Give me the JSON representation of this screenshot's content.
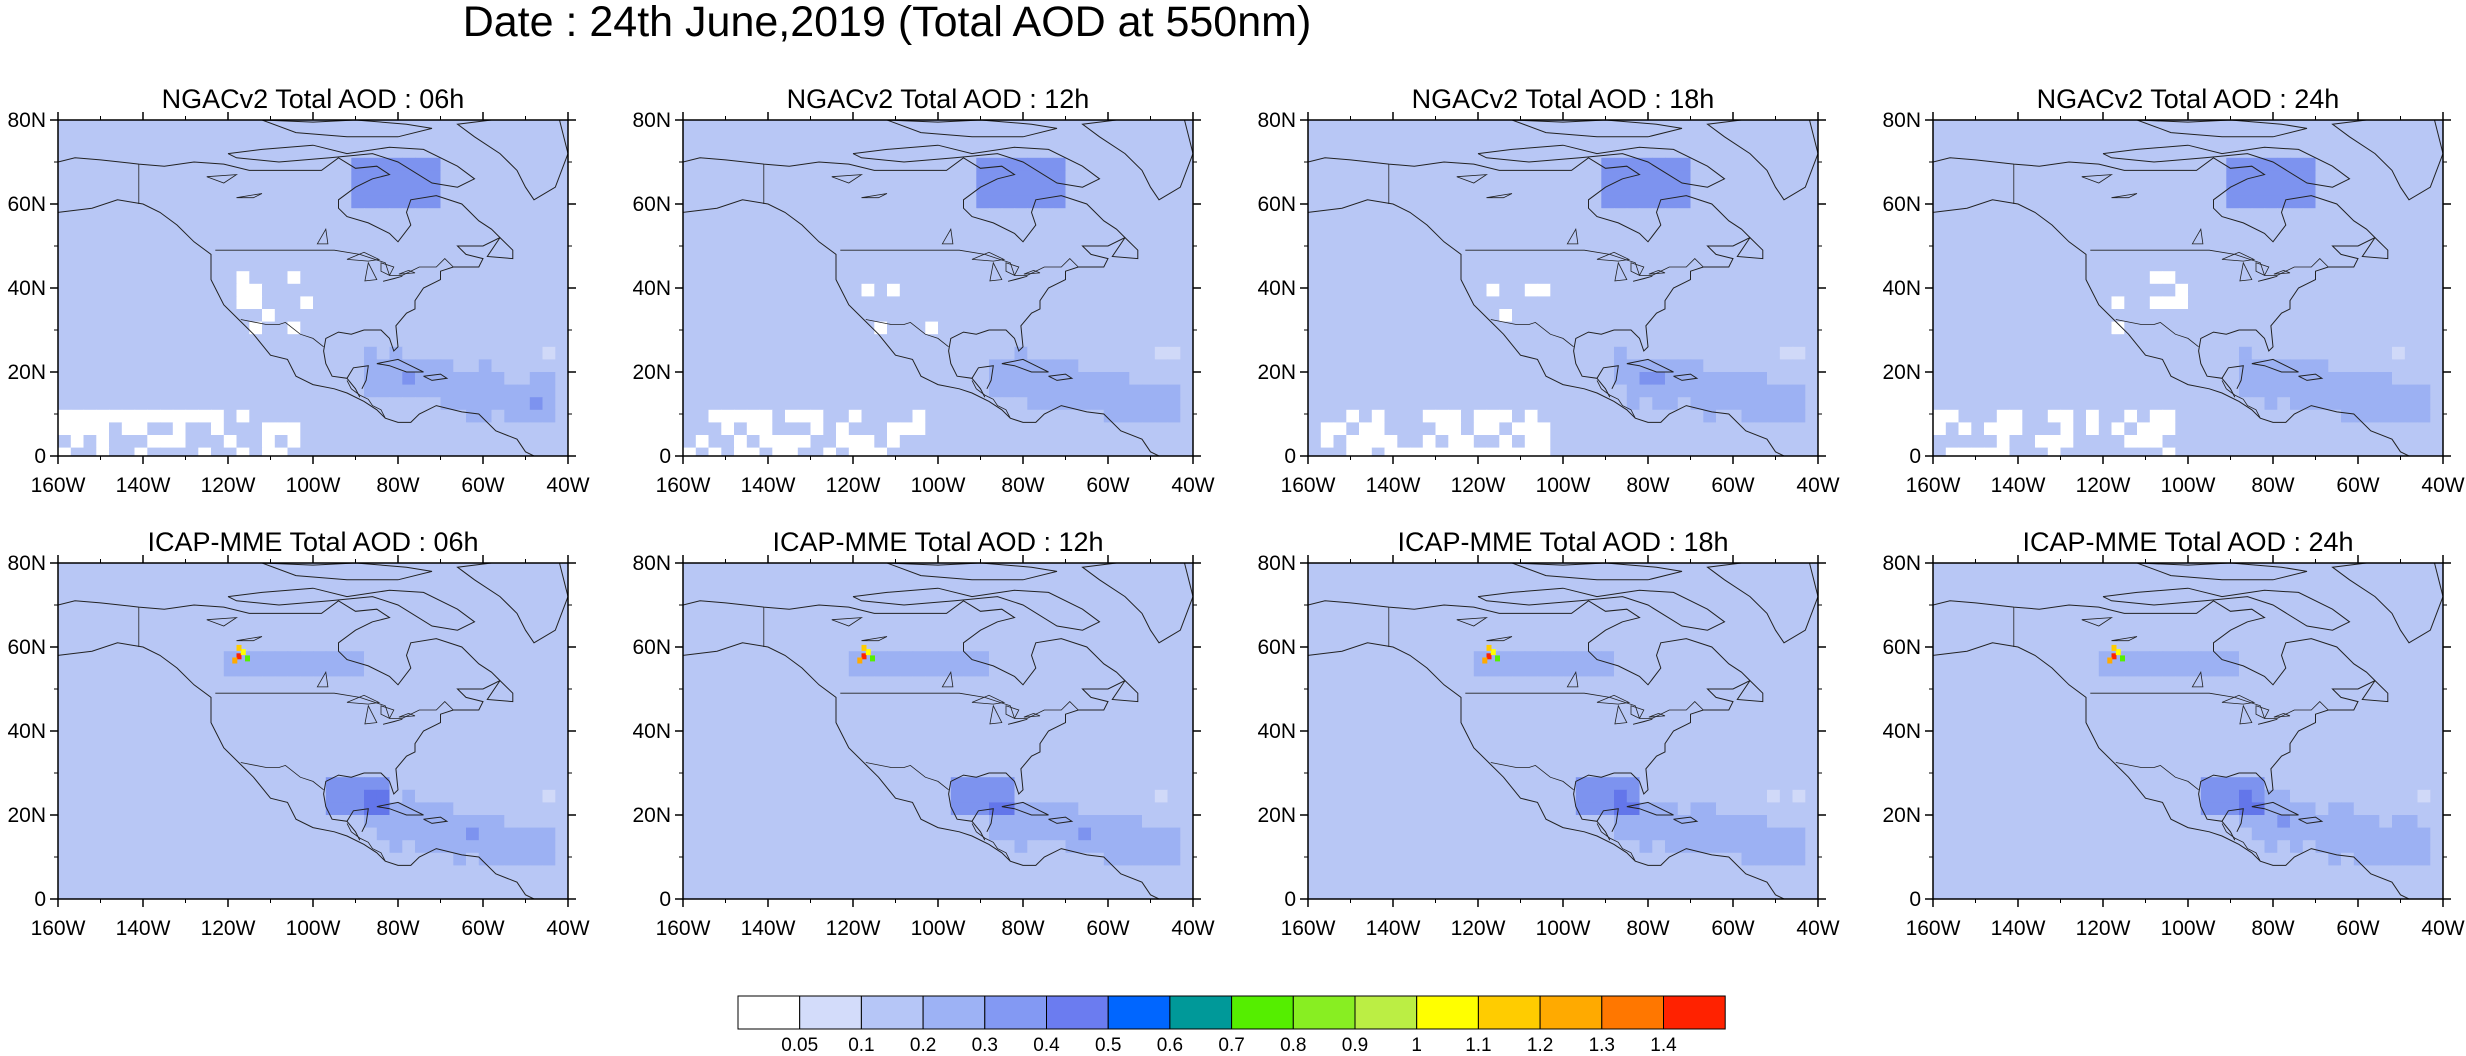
{
  "title": "Date : 24th June,2019 (Total AOD at 550nm)",
  "lat_labels": [
    "80N",
    "60N",
    "40N",
    "20N",
    "0"
  ],
  "lon_labels": [
    "160W",
    "140W",
    "120W",
    "100W",
    "80W",
    "60W",
    "40W"
  ],
  "extent": {
    "lon": [
      -160,
      -40
    ],
    "lat": [
      0,
      80
    ]
  },
  "rows": [
    {
      "model": "NGACv2",
      "panels": [
        {
          "title": "NGACv2 Total AOD : 06h",
          "hour": "06h",
          "fire_hotspot": false
        },
        {
          "title": "NGACv2 Total AOD : 12h",
          "hour": "12h",
          "fire_hotspot": false
        },
        {
          "title": "NGACv2 Total AOD : 18h",
          "hour": "18h",
          "fire_hotspot": false
        },
        {
          "title": "NGACv2 Total AOD : 24h",
          "hour": "24h",
          "fire_hotspot": false
        }
      ]
    },
    {
      "model": "ICAP-MME",
      "panels": [
        {
          "title": "ICAP-MME Total AOD : 06h",
          "hour": "06h",
          "fire_hotspot": true
        },
        {
          "title": "ICAP-MME Total AOD : 12h",
          "hour": "12h",
          "fire_hotspot": true
        },
        {
          "title": "ICAP-MME Total AOD : 18h",
          "hour": "18h",
          "fire_hotspot": true
        },
        {
          "title": "ICAP-MME Total AOD : 24h",
          "hour": "24h",
          "fire_hotspot": true
        }
      ]
    }
  ],
  "colorbar": {
    "labels": [
      "0.05",
      "0.1",
      "0.2",
      "0.3",
      "0.4",
      "0.5",
      "0.6",
      "0.7",
      "0.8",
      "0.9",
      "1",
      "1.1",
      "1.2",
      "1.3",
      "1.4"
    ],
    "colors": [
      "#ffffff",
      "#d3dcfa",
      "#b6c6f7",
      "#9db2f5",
      "#8399f3",
      "#6b7cf0",
      "#0066ff",
      "#009999",
      "#55ee00",
      "#88ee22",
      "#bbee44",
      "#ffff00",
      "#ffcc00",
      "#ffaa00",
      "#ff7700",
      "#ff2200"
    ]
  },
  "field_colors": {
    "light": "#d0d9f8",
    "base": "#b8c7f5",
    "medium": "#9cb1f3",
    "dark": "#7d93ef",
    "darker": "#6376ea"
  }
}
